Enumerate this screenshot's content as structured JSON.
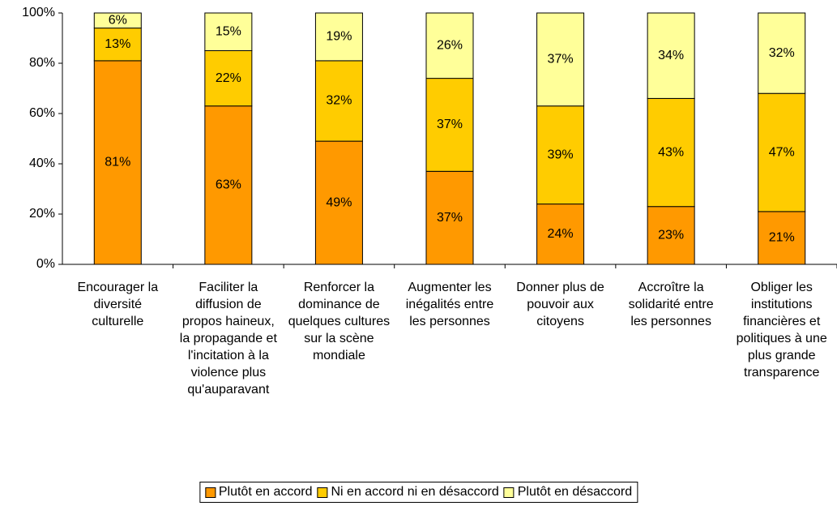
{
  "chart_data": {
    "type": "stacked_bar",
    "categories": [
      "Encourager la diversité culturelle",
      "Faciliter la diffusion de propos haineux, la propagande et l'incitation à la violence plus qu'auparavant",
      "Renforcer la dominance de quelques cultures sur la scène mondiale",
      "Augmenter les inégalités entre les personnes",
      "Donner plus de pouvoir aux citoyens",
      "Accroître la solidarité entre les personnes",
      "Obliger les institutions financières et politiques à une plus grande transparence"
    ],
    "series": [
      {
        "name": "Plutôt en accord",
        "color": "#FF9900",
        "values": [
          81,
          63,
          49,
          37,
          24,
          23,
          21
        ],
        "value_labels": [
          "81%",
          "63%",
          "49%",
          "37%",
          "24%",
          "23%",
          "21%"
        ]
      },
      {
        "name": "Ni en accord ni en désaccord",
        "color": "#FFCC00",
        "values": [
          13,
          22,
          32,
          37,
          39,
          43,
          47
        ],
        "value_labels": [
          "13%",
          "22%",
          "32%",
          "37%",
          "39%",
          "43%",
          "47%"
        ]
      },
      {
        "name": "Plutôt en désaccord",
        "color": "#FFFF99",
        "values": [
          6,
          15,
          19,
          26,
          37,
          34,
          32
        ],
        "value_labels": [
          "6%",
          "15%",
          "19%",
          "26%",
          "37%",
          "34%",
          "32%"
        ]
      }
    ],
    "ylim": [
      0,
      100
    ],
    "yticks": [
      {
        "value": 0,
        "label": "0%"
      },
      {
        "value": 20,
        "label": "20%"
      },
      {
        "value": 40,
        "label": "40%"
      },
      {
        "value": 60,
        "label": "60%"
      },
      {
        "value": 80,
        "label": "80%"
      },
      {
        "value": 100,
        "label": "100%"
      }
    ],
    "legend": "bottom"
  }
}
